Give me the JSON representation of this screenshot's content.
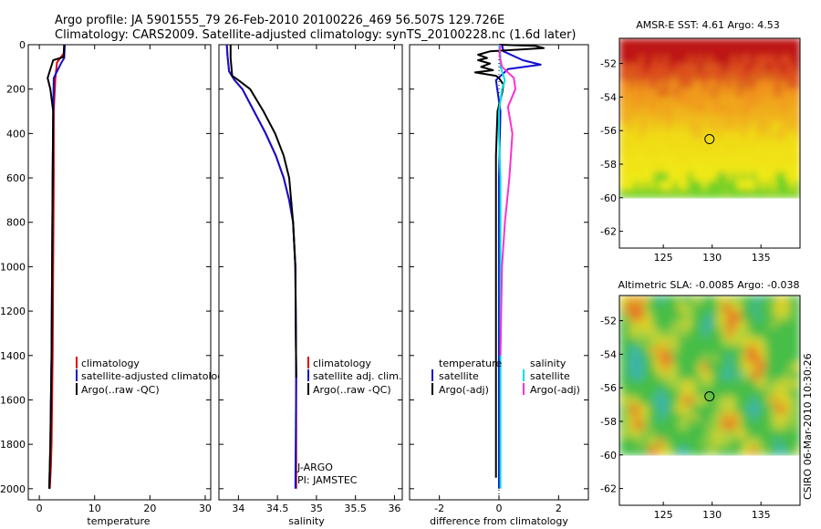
{
  "header": {
    "title_line1": "Argo profile: JA 5901555_79 26-Feb-2010 20100226_469 56.507S 129.726E",
    "title_line2": "Climatology: CARS2009. Satellite-adjusted climatology: synTS_20100228.nc (1.6d later)"
  },
  "side_label": "CSIRO 06-Mar-2010 10:30:26",
  "colors": {
    "climatology": "#e00000",
    "satellite": "#1010d0",
    "argo": "#000000",
    "sat_sal": "#00e0e0",
    "argo_sal": "#ff30d0"
  },
  "chart_data": [
    {
      "id": "temperature",
      "type": "line",
      "xlabel": "temperature",
      "ylabel": "",
      "xlim": [
        -2,
        31
      ],
      "ylim": [
        2050,
        0
      ],
      "y_inverted": true,
      "xticks": [
        0,
        10,
        20,
        30
      ],
      "yticks": [
        0,
        200,
        400,
        600,
        800,
        1000,
        1200,
        1400,
        1600,
        1800,
        2000
      ],
      "legend": [
        "climatology",
        "satellite-adjusted climatology",
        "Argo(..raw -QC)"
      ],
      "series": [
        {
          "name": "climatology",
          "color": "#e00000",
          "x": [
            4.5,
            4.4,
            3.2,
            2.9,
            2.8,
            2.6,
            2.6,
            2.5,
            2.4,
            2.3,
            2.2,
            2.1,
            2.0,
            1.9
          ],
          "y": [
            0,
            40,
            80,
            150,
            200,
            300,
            600,
            1000,
            1400,
            1600,
            1800,
            1900,
            1950,
            2000
          ]
        },
        {
          "name": "satellite-adjusted climatology",
          "color": "#1010d0",
          "x": [
            4.6,
            4.5,
            4.0,
            2.6,
            2.5,
            2.4,
            2.3,
            2.2,
            2.1,
            2.0,
            1.9,
            1.8
          ],
          "y": [
            0,
            60,
            80,
            150,
            300,
            600,
            1000,
            1400,
            1600,
            1800,
            1900,
            2000
          ]
        },
        {
          "name": "Argo(..raw -QC)",
          "color": "#000000",
          "x": [
            4.5,
            4.4,
            2.5,
            1.5,
            1.7,
            2.0,
            2.5,
            2.4,
            2.3,
            2.2,
            2.0,
            1.8
          ],
          "y": [
            0,
            55,
            70,
            150,
            170,
            200,
            300,
            600,
            1000,
            1400,
            1800,
            2000
          ]
        }
      ]
    },
    {
      "id": "salinity",
      "type": "line",
      "xlabel": "salinity",
      "ylabel": "",
      "xlim": [
        33.75,
        36.1
      ],
      "ylim": [
        2050,
        0
      ],
      "y_inverted": true,
      "xticks": [
        34,
        34.5,
        35,
        35.5,
        36
      ],
      "legend": [
        "climatology",
        "satellite adj. clim.",
        "Argo(..raw -QC)"
      ],
      "annotations": [
        "J-ARGO",
        "PI: JAMSTEC"
      ],
      "series": [
        {
          "name": "climatology",
          "color": "#e00000",
          "x": [
            33.85,
            33.86,
            33.88,
            33.95,
            34.05,
            34.2,
            34.35,
            34.48,
            34.58,
            34.65,
            34.7,
            34.73,
            34.74,
            34.74
          ],
          "y": [
            0,
            50,
            120,
            160,
            200,
            300,
            400,
            500,
            600,
            700,
            800,
            1000,
            1500,
            2000
          ]
        },
        {
          "name": "satellite adj. clim.",
          "color": "#1010d0",
          "x": [
            33.85,
            33.86,
            33.88,
            33.95,
            34.05,
            34.2,
            34.35,
            34.48,
            34.58,
            34.65,
            34.7,
            34.73,
            34.74,
            34.73
          ],
          "y": [
            0,
            50,
            120,
            160,
            200,
            300,
            400,
            500,
            600,
            700,
            800,
            1000,
            1500,
            2000
          ]
        },
        {
          "name": "Argo(..raw -QC)",
          "color": "#000000",
          "x": [
            33.9,
            33.9,
            33.92,
            34.0,
            34.15,
            34.32,
            34.47,
            34.58,
            34.65,
            34.7,
            34.73,
            34.74
          ],
          "y": [
            0,
            60,
            140,
            160,
            200,
            300,
            400,
            500,
            600,
            800,
            1000,
            1500
          ]
        }
      ]
    },
    {
      "id": "difference",
      "type": "line",
      "xlabel": "difference from climatology",
      "ylabel": "",
      "xlim": [
        -3,
        3
      ],
      "ylim": [
        2050,
        0
      ],
      "y_inverted": true,
      "xticks": [
        -2,
        0,
        2
      ],
      "legend_left": [
        "temperature",
        "satellite",
        "Argo(-adj)"
      ],
      "legend_right": [
        "salinity",
        "satellite",
        "Argo(-adj)"
      ],
      "series": [
        {
          "name": "temperature satellite",
          "color": "#1010d0",
          "x": [
            0.1,
            0.15,
            0.8,
            1.4,
            0.3,
            -0.1,
            0.05,
            0.0,
            0.0,
            0.0,
            0.0,
            0.0
          ],
          "y": [
            0,
            30,
            70,
            90,
            110,
            160,
            300,
            600,
            900,
            1200,
            1600,
            2000
          ]
        },
        {
          "name": "temperature Argo(-adj)",
          "color": "#000000",
          "x": [
            0.0,
            1.2,
            1.5,
            -0.3,
            -0.7,
            -0.4,
            -0.7,
            -0.3,
            -0.6,
            -0.2,
            -0.8,
            -0.1,
            0.0,
            0.15,
            0.1,
            -0.05,
            -0.1,
            -0.1,
            -0.1,
            -0.1,
            -0.1,
            -0.1,
            -0.1
          ],
          "y": [
            0,
            5,
            15,
            30,
            45,
            60,
            70,
            85,
            100,
            115,
            125,
            140,
            150,
            180,
            220,
            300,
            500,
            800,
            1200,
            1500,
            1800,
            1900,
            1950
          ]
        },
        {
          "name": "salinity satellite",
          "color": "#00e0e0",
          "x": [
            0.0,
            0.05,
            0.05,
            0.2,
            0.1,
            0.0,
            0.0,
            0.05,
            0.05,
            0.05,
            0.05,
            0.05
          ],
          "y": [
            0,
            50,
            100,
            160,
            200,
            300,
            400,
            600,
            800,
            1200,
            1600,
            2000
          ]
        },
        {
          "name": "salinity Argo(-adj)",
          "color": "#ff30d0",
          "x": [
            0.05,
            0.02,
            0.1,
            0.5,
            0.55,
            0.3,
            0.45,
            0.35,
            0.2,
            0.1,
            0.05
          ],
          "y": [
            0,
            50,
            100,
            150,
            200,
            280,
            400,
            600,
            800,
            1000,
            1400
          ]
        }
      ]
    },
    {
      "id": "sst_map",
      "type": "heatmap",
      "title": "AMSR-E SST: 4.61 Argo: 4.53",
      "xlim": [
        120.5,
        139
      ],
      "ylim": [
        -63,
        -50.5
      ],
      "xticks": [
        125,
        130,
        135
      ],
      "yticks": [
        -52,
        -54,
        -56,
        -58,
        -60,
        -62
      ],
      "field_ylim": [
        -60,
        -50.5
      ],
      "marker": {
        "lon": 129.726,
        "lat": -56.507
      }
    },
    {
      "id": "sla_map",
      "type": "heatmap",
      "title": "Altimetric SLA: -0.0085 Argo: -0.038",
      "xlim": [
        120.5,
        139
      ],
      "ylim": [
        -63,
        -50.5
      ],
      "xticks": [
        125,
        130,
        135
      ],
      "yticks": [
        -52,
        -54,
        -56,
        -58,
        -60,
        -62
      ],
      "field_ylim": [
        -60,
        -50.5
      ],
      "marker": {
        "lon": 129.726,
        "lat": -56.507
      }
    }
  ]
}
